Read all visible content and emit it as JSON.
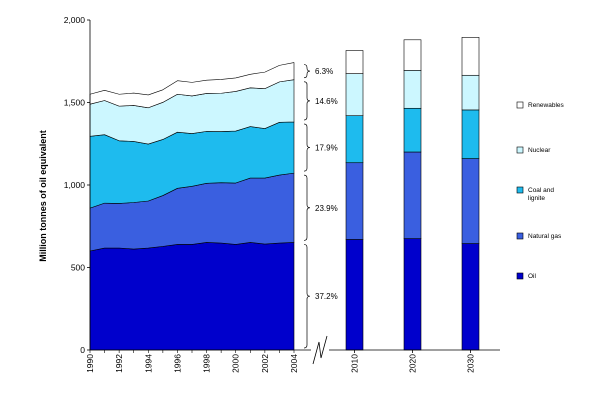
{
  "chart_data": {
    "type": "area",
    "ylabel": "Million tonnes of oil equivalent",
    "ylim": [
      0,
      2000
    ],
    "yticks": [
      "0",
      "500",
      "1,000",
      "1,500",
      "2,000"
    ],
    "years": [
      1990,
      1991,
      1992,
      1993,
      1994,
      1995,
      1996,
      1997,
      1998,
      1999,
      2000,
      2001,
      2002,
      2003,
      2004
    ],
    "year_tick_labels": [
      "1990",
      "1992",
      "1994",
      "1996",
      "1998",
      "2000",
      "2002",
      "2004"
    ],
    "series": [
      {
        "name": "Oil",
        "color": "#0000cc",
        "values": [
          600,
          618,
          618,
          612,
          618,
          628,
          640,
          640,
          652,
          648,
          640,
          652,
          642,
          648,
          652
        ]
      },
      {
        "name": "Natural gas",
        "color": "#3a5fe0",
        "values": [
          260,
          272,
          270,
          282,
          285,
          308,
          340,
          352,
          358,
          366,
          372,
          390,
          400,
          412,
          420
        ]
      },
      {
        "name": "Coal and lignite",
        "color": "#1ebbee",
        "values": [
          435,
          415,
          380,
          370,
          345,
          340,
          340,
          320,
          315,
          310,
          315,
          312,
          300,
          320,
          310
        ]
      },
      {
        "name": "Nuclear",
        "color": "#ccf7ff",
        "values": [
          195,
          207,
          210,
          218,
          220,
          225,
          230,
          228,
          230,
          232,
          240,
          235,
          242,
          245,
          256
        ]
      },
      {
        "name": "Renewables",
        "color": "#ffffff",
        "values": [
          60,
          62,
          72,
          75,
          78,
          76,
          82,
          82,
          80,
          84,
          82,
          82,
          100,
          100,
          104
        ]
      }
    ],
    "share_labels": [
      "6.3%",
      "14.6%",
      "17.9%",
      "23.9%",
      "37.2%"
    ],
    "projections": {
      "categories": [
        "2010",
        "2020",
        "2030"
      ],
      "values": {
        "Oil": [
          670,
          675,
          645
        ],
        "Natural gas": [
          465,
          525,
          515
        ],
        "Coal and lignite": [
          285,
          265,
          295
        ],
        "Nuclear": [
          255,
          230,
          210
        ],
        "Renewables": [
          140,
          185,
          230
        ]
      }
    },
    "legend": [
      "Renewables",
      "Nuclear",
      "Coal and\nlignite",
      "Natural gas",
      "Oil"
    ],
    "legend_placement": "right"
  }
}
